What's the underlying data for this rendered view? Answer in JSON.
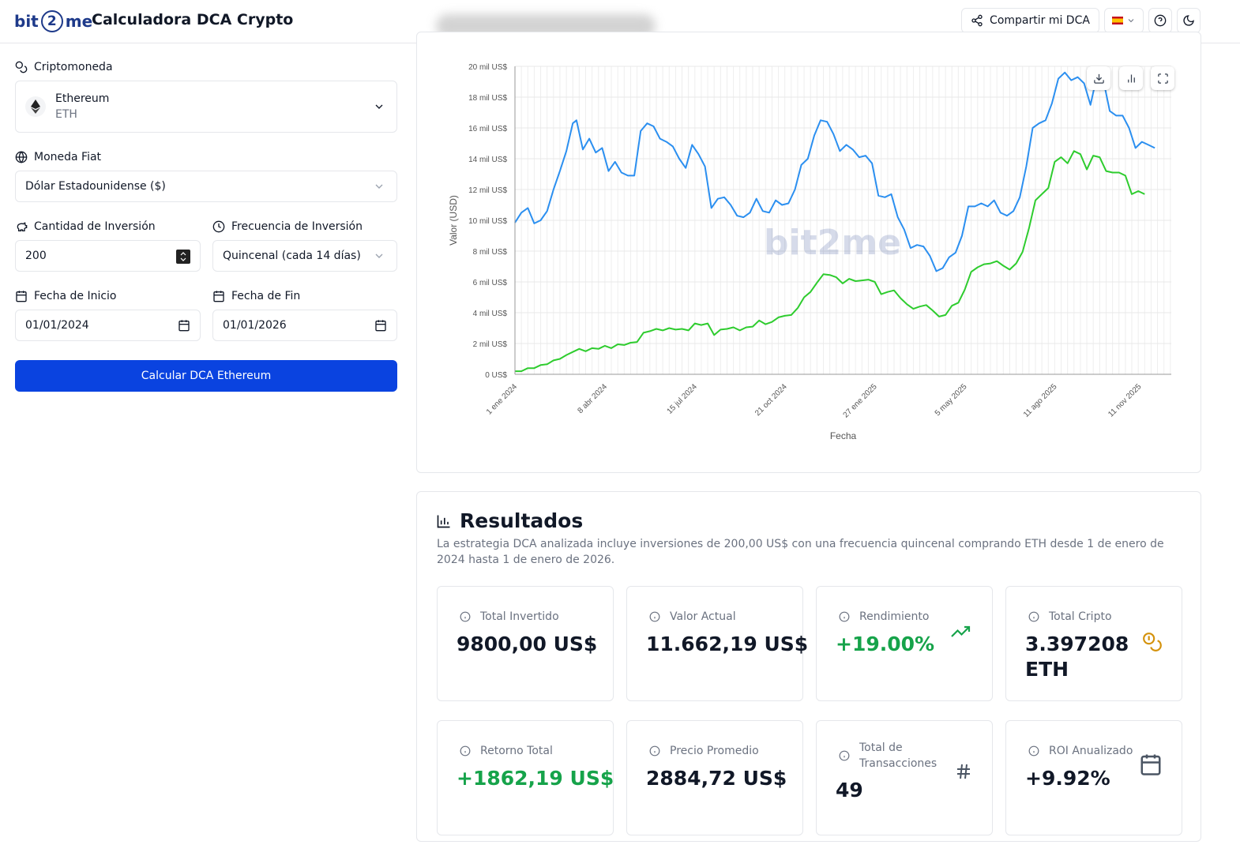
{
  "header": {
    "logo_left": "bit",
    "logo_mid": "2",
    "logo_right": "me",
    "title": "Calculadora DCA Crypto",
    "share_label": "Compartir mi DCA"
  },
  "form": {
    "crypto_label": "Criptomoneda",
    "crypto_name": "Ethereum",
    "crypto_symbol": "ETH",
    "fiat_label": "Moneda Fiat",
    "fiat_value": "Dólar Estadounidense ($)",
    "amount_label": "Cantidad de Inversión",
    "amount_value": "200",
    "frequency_label": "Frecuencia de Inversión",
    "frequency_value": "Quincenal (cada 14 días)",
    "start_label": "Fecha de Inicio",
    "start_value": "01/01/2024",
    "end_label": "Fecha de Fin",
    "end_value": "01/01/2026",
    "calculate_label": "Calcular DCA Ethereum"
  },
  "chart_data": {
    "type": "line",
    "xlabel": "Fecha",
    "ylabel": "Valor (USD)",
    "ylim": [
      0,
      20000
    ],
    "yticks": [
      0,
      2000,
      4000,
      6000,
      8000,
      10000,
      12000,
      14000,
      16000,
      18000,
      20000
    ],
    "ytick_labels": [
      "0 US$",
      "2 mil US$",
      "4 mil US$",
      "6 mil US$",
      "8 mil US$",
      "10 mil US$",
      "12 mil US$",
      "14 mil US$",
      "16 mil US$",
      "18 mil US$",
      "20 mil US$"
    ],
    "xticks": [
      "1 ene 2024",
      "8 abr 2024",
      "15 jul 2024",
      "21 oct 2024",
      "27 ene 2025",
      "5 may 2025",
      "11 ago 2025",
      "11 nov 2025"
    ],
    "xlim": [
      "2024-01-01",
      "2025-12-16"
    ],
    "watermark": "bit2me",
    "grid": true,
    "colors": {
      "value": "#2b8ff0",
      "invested": "#2ecc2e"
    },
    "series": [
      {
        "color": "#2b8ff0",
        "points": [
          [
            "2024-01-01",
            9850
          ],
          [
            "2024-01-08",
            10500
          ],
          [
            "2024-01-15",
            10800
          ],
          [
            "2024-01-22",
            9800
          ],
          [
            "2024-01-29",
            10000
          ],
          [
            "2024-02-05",
            10600
          ],
          [
            "2024-02-12",
            12000
          ],
          [
            "2024-02-19",
            13200
          ],
          [
            "2024-02-26",
            14500
          ],
          [
            "2024-03-04",
            16300
          ],
          [
            "2024-03-08",
            16500
          ],
          [
            "2024-03-15",
            14600
          ],
          [
            "2024-03-22",
            15300
          ],
          [
            "2024-03-29",
            14400
          ],
          [
            "2024-04-05",
            14700
          ],
          [
            "2024-04-12",
            13200
          ],
          [
            "2024-04-19",
            13800
          ],
          [
            "2024-04-26",
            13100
          ],
          [
            "2024-05-03",
            12900
          ],
          [
            "2024-05-10",
            12900
          ],
          [
            "2024-05-17",
            15800
          ],
          [
            "2024-05-24",
            16300
          ],
          [
            "2024-05-31",
            16100
          ],
          [
            "2024-06-07",
            15300
          ],
          [
            "2024-06-14",
            15100
          ],
          [
            "2024-06-21",
            14800
          ],
          [
            "2024-06-28",
            14000
          ],
          [
            "2024-07-05",
            13400
          ],
          [
            "2024-07-12",
            14900
          ],
          [
            "2024-07-19",
            14300
          ],
          [
            "2024-07-26",
            13500
          ],
          [
            "2024-08-02",
            10800
          ],
          [
            "2024-08-09",
            11400
          ],
          [
            "2024-08-16",
            11500
          ],
          [
            "2024-08-23",
            11000
          ],
          [
            "2024-08-30",
            10300
          ],
          [
            "2024-09-06",
            10200
          ],
          [
            "2024-09-13",
            10500
          ],
          [
            "2024-09-20",
            11400
          ],
          [
            "2024-09-27",
            10600
          ],
          [
            "2024-10-04",
            10500
          ],
          [
            "2024-10-11",
            11300
          ],
          [
            "2024-10-18",
            11000
          ],
          [
            "2024-10-25",
            11100
          ],
          [
            "2024-11-01",
            12000
          ],
          [
            "2024-11-08",
            13600
          ],
          [
            "2024-11-15",
            14000
          ],
          [
            "2024-11-22",
            15500
          ],
          [
            "2024-11-29",
            16500
          ],
          [
            "2024-12-06",
            16400
          ],
          [
            "2024-12-13",
            15600
          ],
          [
            "2024-12-20",
            14500
          ],
          [
            "2024-12-27",
            14900
          ],
          [
            "2025-01-03",
            14600
          ],
          [
            "2025-01-10",
            14100
          ],
          [
            "2025-01-17",
            14200
          ],
          [
            "2025-01-24",
            13700
          ],
          [
            "2025-01-31",
            11600
          ],
          [
            "2025-02-07",
            11500
          ],
          [
            "2025-02-14",
            11700
          ],
          [
            "2025-02-21",
            10200
          ],
          [
            "2025-02-28",
            9400
          ],
          [
            "2025-03-07",
            8200
          ],
          [
            "2025-03-14",
            8400
          ],
          [
            "2025-03-21",
            8300
          ],
          [
            "2025-03-28",
            7700
          ],
          [
            "2025-04-04",
            6700
          ],
          [
            "2025-04-11",
            6900
          ],
          [
            "2025-04-18",
            7600
          ],
          [
            "2025-04-25",
            7900
          ],
          [
            "2025-05-02",
            9000
          ],
          [
            "2025-05-09",
            10900
          ],
          [
            "2025-05-16",
            10900
          ],
          [
            "2025-05-23",
            11100
          ],
          [
            "2025-05-30",
            10900
          ],
          [
            "2025-06-06",
            11300
          ],
          [
            "2025-06-13",
            10500
          ],
          [
            "2025-06-20",
            10300
          ],
          [
            "2025-06-27",
            10600
          ],
          [
            "2025-07-04",
            11500
          ],
          [
            "2025-07-11",
            13500
          ],
          [
            "2025-07-18",
            16000
          ],
          [
            "2025-07-25",
            16300
          ],
          [
            "2025-08-01",
            16500
          ],
          [
            "2025-08-08",
            17600
          ],
          [
            "2025-08-15",
            19200
          ],
          [
            "2025-08-22",
            19600
          ],
          [
            "2025-08-29",
            19100
          ],
          [
            "2025-09-05",
            19300
          ],
          [
            "2025-09-12",
            18900
          ],
          [
            "2025-09-19",
            17500
          ],
          [
            "2025-09-26",
            19400
          ],
          [
            "2025-10-03",
            19100
          ],
          [
            "2025-10-10",
            17100
          ],
          [
            "2025-10-17",
            16800
          ],
          [
            "2025-10-24",
            16800
          ],
          [
            "2025-10-31",
            16000
          ],
          [
            "2025-11-07",
            14700
          ],
          [
            "2025-11-14",
            15100
          ],
          [
            "2025-11-21",
            14900
          ],
          [
            "2025-11-28",
            14700
          ]
        ]
      },
      {
        "color": "#2ecc2e",
        "points": [
          [
            "2024-01-01",
            200
          ],
          [
            "2024-01-08",
            200
          ],
          [
            "2024-01-15",
            400
          ],
          [
            "2024-01-22",
            400
          ],
          [
            "2024-01-29",
            600
          ],
          [
            "2024-02-05",
            650
          ],
          [
            "2024-02-12",
            900
          ],
          [
            "2024-02-19",
            1000
          ],
          [
            "2024-02-26",
            1250
          ],
          [
            "2024-03-04",
            1450
          ],
          [
            "2024-03-11",
            1650
          ],
          [
            "2024-03-18",
            1500
          ],
          [
            "2024-03-25",
            1700
          ],
          [
            "2024-04-01",
            1650
          ],
          [
            "2024-04-08",
            1850
          ],
          [
            "2024-04-15",
            1700
          ],
          [
            "2024-04-22",
            1950
          ],
          [
            "2024-04-29",
            1900
          ],
          [
            "2024-05-06",
            2050
          ],
          [
            "2024-05-13",
            2100
          ],
          [
            "2024-05-20",
            2700
          ],
          [
            "2024-05-27",
            2800
          ],
          [
            "2024-06-03",
            2950
          ],
          [
            "2024-06-10",
            2850
          ],
          [
            "2024-06-17",
            3000
          ],
          [
            "2024-06-24",
            2900
          ],
          [
            "2024-07-01",
            2950
          ],
          [
            "2024-07-08",
            2850
          ],
          [
            "2024-07-15",
            3300
          ],
          [
            "2024-07-22",
            3200
          ],
          [
            "2024-07-29",
            3300
          ],
          [
            "2024-08-05",
            2550
          ],
          [
            "2024-08-12",
            2900
          ],
          [
            "2024-08-19",
            2950
          ],
          [
            "2024-08-26",
            3050
          ],
          [
            "2024-09-02",
            2850
          ],
          [
            "2024-09-09",
            3050
          ],
          [
            "2024-09-16",
            3100
          ],
          [
            "2024-09-23",
            3500
          ],
          [
            "2024-09-30",
            3250
          ],
          [
            "2024-10-07",
            3400
          ],
          [
            "2024-10-14",
            3700
          ],
          [
            "2024-10-21",
            3800
          ],
          [
            "2024-10-28",
            3850
          ],
          [
            "2024-11-04",
            4300
          ],
          [
            "2024-11-11",
            5000
          ],
          [
            "2024-11-18",
            5350
          ],
          [
            "2024-11-25",
            5950
          ],
          [
            "2024-12-02",
            6500
          ],
          [
            "2024-12-09",
            6450
          ],
          [
            "2024-12-16",
            6300
          ],
          [
            "2024-12-23",
            5900
          ],
          [
            "2024-12-30",
            6200
          ],
          [
            "2025-01-06",
            6050
          ],
          [
            "2025-01-13",
            6100
          ],
          [
            "2025-01-20",
            6150
          ],
          [
            "2025-01-27",
            6000
          ],
          [
            "2025-02-03",
            5200
          ],
          [
            "2025-02-10",
            5350
          ],
          [
            "2025-02-17",
            5450
          ],
          [
            "2025-02-24",
            4950
          ],
          [
            "2025-03-03",
            4550
          ],
          [
            "2025-03-10",
            4250
          ],
          [
            "2025-03-17",
            4400
          ],
          [
            "2025-03-24",
            4500
          ],
          [
            "2025-03-31",
            4150
          ],
          [
            "2025-04-07",
            3750
          ],
          [
            "2025-04-14",
            3850
          ],
          [
            "2025-04-21",
            4450
          ],
          [
            "2025-04-28",
            4650
          ],
          [
            "2025-05-05",
            5500
          ],
          [
            "2025-05-12",
            6650
          ],
          [
            "2025-05-19",
            6950
          ],
          [
            "2025-05-26",
            7150
          ],
          [
            "2025-06-02",
            7200
          ],
          [
            "2025-06-09",
            7350
          ],
          [
            "2025-06-16",
            7050
          ],
          [
            "2025-06-23",
            6800
          ],
          [
            "2025-06-30",
            7200
          ],
          [
            "2025-07-07",
            7950
          ],
          [
            "2025-07-14",
            9500
          ],
          [
            "2025-07-21",
            11300
          ],
          [
            "2025-07-28",
            11700
          ],
          [
            "2025-08-04",
            12100
          ],
          [
            "2025-08-11",
            13800
          ],
          [
            "2025-08-18",
            14100
          ],
          [
            "2025-08-25",
            13700
          ],
          [
            "2025-09-01",
            14500
          ],
          [
            "2025-09-08",
            14300
          ],
          [
            "2025-09-15",
            13300
          ],
          [
            "2025-09-22",
            14200
          ],
          [
            "2025-09-29",
            14100
          ],
          [
            "2025-10-06",
            13200
          ],
          [
            "2025-10-13",
            13100
          ],
          [
            "2025-10-20",
            13100
          ],
          [
            "2025-10-27",
            12900
          ],
          [
            "2025-11-03",
            11700
          ],
          [
            "2025-11-10",
            11900
          ],
          [
            "2025-11-17",
            11700
          ]
        ]
      }
    ]
  },
  "results": {
    "title": "Resultados",
    "description": "La estrategia DCA analizada incluye inversiones de 200,00 US$ con una frecuencia quincenal comprando ETH desde 1 de enero de 2024 hasta 1 de enero de 2026.",
    "stats": [
      {
        "label": "Total Invertido",
        "value": "9800,00 US$"
      },
      {
        "label": "Valor Actual",
        "value": "11.662,19 US$"
      },
      {
        "label": "Rendimiento",
        "value": "+19.00%"
      },
      {
        "label": "Total Cripto",
        "value_line1": "3.397208",
        "value_line2": "ETH"
      },
      {
        "label": "Retorno Total",
        "value": "+1862,19 US$"
      },
      {
        "label": "Precio Promedio",
        "value": "2884,72 US$"
      },
      {
        "label_line1": "Total de",
        "label_line2": "Transacciones",
        "value": "49"
      },
      {
        "label": "ROI Anualizado",
        "value": "+9.92%"
      }
    ]
  }
}
